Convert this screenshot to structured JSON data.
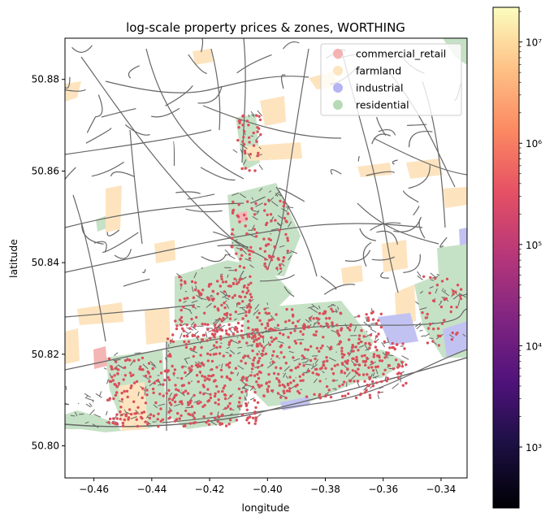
{
  "chart_data": {
    "type": "scatter",
    "title": "log-scale property prices & zones, WORTHING",
    "xlabel": "longitude",
    "ylabel": "latitude",
    "xlim": [
      -0.47,
      -0.331
    ],
    "ylim": [
      50.793,
      50.889
    ],
    "x_ticks": [
      -0.46,
      -0.44,
      -0.42,
      -0.4,
      -0.38,
      -0.36,
      -0.34
    ],
    "x_tick_labels": [
      "−0.46",
      "−0.44",
      "−0.42",
      "−0.40",
      "−0.38",
      "−0.36",
      "−0.34"
    ],
    "y_ticks": [
      50.8,
      50.82,
      50.84,
      50.86,
      50.88
    ],
    "y_tick_labels": [
      "50.80",
      "50.82",
      "50.84",
      "50.86",
      "50.88"
    ],
    "grid": false,
    "legend_position": "top-right",
    "legend": [
      {
        "label": "commercial_retail",
        "color": "#f4a6a6"
      },
      {
        "label": "farmland",
        "color": "#fde0b4"
      },
      {
        "label": "industrial",
        "color": "#a8a8f0"
      },
      {
        "label": "residential",
        "color": "#a8d4a8"
      }
    ],
    "colorbar": {
      "scale": "log",
      "colormap": "magma",
      "range": [
        250,
        22000000
      ],
      "ticks": [
        1000,
        10000,
        100000,
        1000000,
        10000000
      ],
      "tick_labels": [
        "10³",
        "10⁴",
        "10⁵",
        "10⁶",
        "10⁷"
      ]
    },
    "layers": [
      "zone polygons",
      "road network",
      "property price points"
    ]
  },
  "colors": {
    "road": "#666666",
    "points": "#d9505a",
    "commercial_retail": "#f4b5b5",
    "farmland": "#fde4bf",
    "industrial": "#c2c2f2",
    "residential": "#c6e2c6"
  }
}
